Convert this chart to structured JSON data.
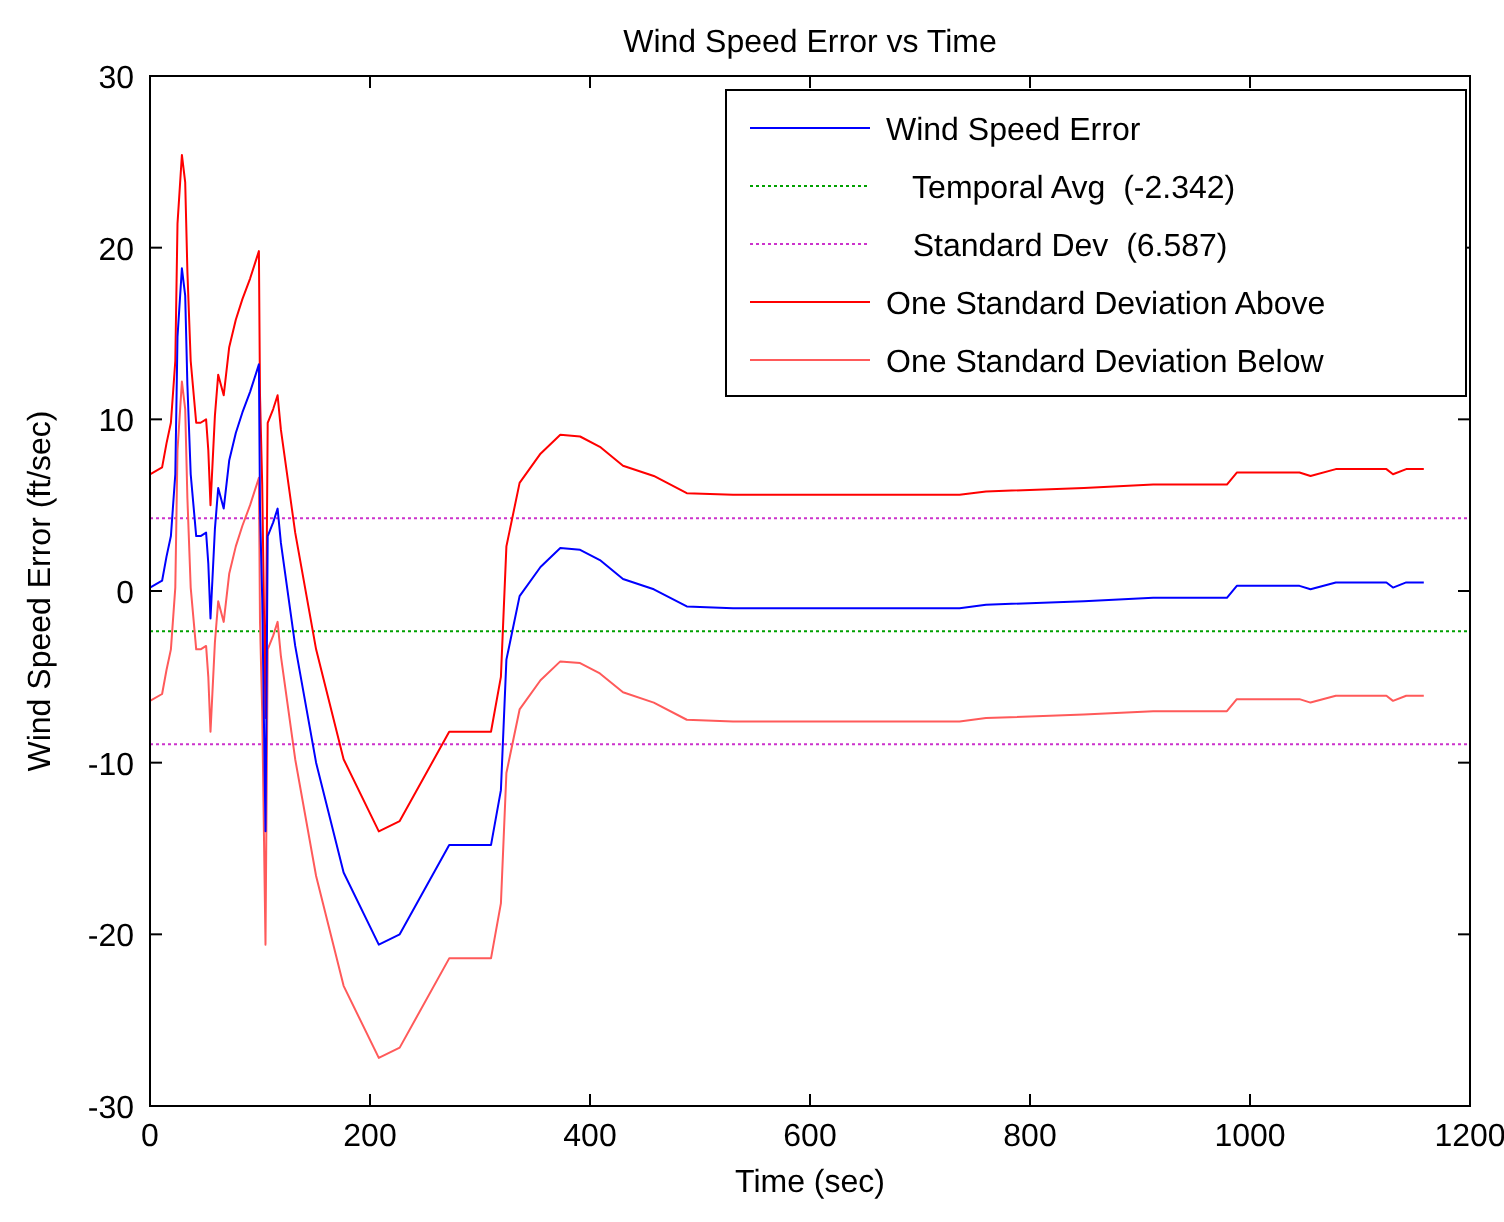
{
  "chart_data": {
    "type": "line",
    "title": "Wind Speed Error vs Time",
    "xlabel": "Time (sec)",
    "ylabel": "Wind Speed Error (ft/sec)",
    "xlim": [
      0,
      1200
    ],
    "xticks": [
      0,
      200,
      400,
      600,
      800,
      1000,
      1200
    ],
    "ylim": [
      -30,
      30
    ],
    "yticks": [
      -30,
      -20,
      -10,
      0,
      10,
      20,
      30
    ],
    "grid": false,
    "ref_lines": [
      {
        "axis": "y",
        "value": -2.342,
        "label": "   Temporal Avg  (-2.342)",
        "color": "#00a000",
        "line_style": "dotted"
      },
      {
        "axis": "y",
        "value": 4.245,
        "label": "   Standard Dev  (6.587)",
        "color": "#cc33cc",
        "line_style": "dotted"
      },
      {
        "axis": "y",
        "value": -8.929,
        "label": null,
        "color": "#cc33cc",
        "line_style": "dotted"
      }
    ],
    "legend": "top right",
    "marker": "none",
    "x": [
      0,
      11,
      15,
      19,
      23,
      25,
      29,
      32,
      34,
      37,
      42,
      46,
      51,
      53,
      55,
      59,
      62,
      67,
      72,
      78,
      84,
      91,
      99,
      100,
      102,
      105,
      107,
      112,
      116,
      119,
      132,
      151,
      176,
      208,
      227,
      272,
      310,
      319,
      324,
      336,
      355,
      373,
      391,
      409,
      430,
      458,
      488,
      530,
      736,
      760,
      849,
      912,
      979,
      988,
      1045,
      1055,
      1078,
      1124,
      1130,
      1142,
      1158
    ],
    "series": [
      {
        "name": "Wind Speed Error",
        "color": "#0000ff",
        "line_style": "solid",
        "values": [
          0.2,
          0.6,
          2,
          3.2,
          6.8,
          14.8,
          18.8,
          17.2,
          12,
          6.8,
          3.2,
          3.2,
          3.4,
          1.6,
          -1.6,
          3.6,
          6,
          4.8,
          7.6,
          9.2,
          10.4,
          11.6,
          13.2,
          4.8,
          -0.4,
          -14,
          3.2,
          4,
          4.8,
          2.8,
          -3.2,
          -10,
          -16.4,
          -20.6,
          -20,
          -14.8,
          -14.8,
          -11.6,
          -4,
          -0.3,
          1.4,
          2.5,
          2.4,
          1.8,
          0.7,
          0.1,
          -0.9,
          -1,
          -1,
          -0.8,
          -0.6,
          -0.4,
          -0.4,
          0.3,
          0.3,
          0.1,
          0.5,
          0.5,
          0.2,
          0.5,
          0.5
        ]
      },
      {
        "name": "One Standard Deviation Above",
        "color": "#ff0000",
        "line_style": "solid",
        "values": [
          6.8,
          7.2,
          8.6,
          9.8,
          13.4,
          21.4,
          25.4,
          23.8,
          18.6,
          13.4,
          9.8,
          9.8,
          10,
          8.2,
          5,
          10.2,
          12.6,
          11.4,
          14.2,
          15.8,
          17,
          18.2,
          19.8,
          11.4,
          6.2,
          -7.4,
          9.8,
          10.6,
          11.4,
          9.4,
          3.4,
          -3.4,
          -9.8,
          -14,
          -13.4,
          -8.2,
          -8.2,
          -5,
          2.6,
          6.3,
          8,
          9.1,
          9,
          8.4,
          7.3,
          6.7,
          5.7,
          5.6,
          5.6,
          5.8,
          6,
          6.2,
          6.2,
          6.9,
          6.9,
          6.7,
          7.1,
          7.1,
          6.8,
          7.1,
          7.1
        ]
      },
      {
        "name": "One Standard Deviation Below",
        "color": "#ff5a5a",
        "line_style": "solid",
        "values": [
          -6.4,
          -6,
          -4.6,
          -3.4,
          0.2,
          8.2,
          12.2,
          10.6,
          5.4,
          0.2,
          -3.4,
          -3.4,
          -3.2,
          -5,
          -8.2,
          -3,
          -0.6,
          -1.8,
          1,
          2.6,
          3.8,
          5,
          6.6,
          -1.8,
          -7,
          -20.6,
          -3.4,
          -2.6,
          -1.8,
          -3.8,
          -9.8,
          -16.6,
          -23,
          -27.2,
          -26.6,
          -21.4,
          -21.4,
          -18.2,
          -10.6,
          -6.9,
          -5.2,
          -4.1,
          -4.2,
          -4.8,
          -5.9,
          -6.5,
          -7.5,
          -7.6,
          -7.6,
          -7.4,
          -7.2,
          -7,
          -7,
          -6.3,
          -6.3,
          -6.5,
          -6.1,
          -6.1,
          -6.4,
          -6.1,
          -6.1
        ]
      }
    ]
  }
}
